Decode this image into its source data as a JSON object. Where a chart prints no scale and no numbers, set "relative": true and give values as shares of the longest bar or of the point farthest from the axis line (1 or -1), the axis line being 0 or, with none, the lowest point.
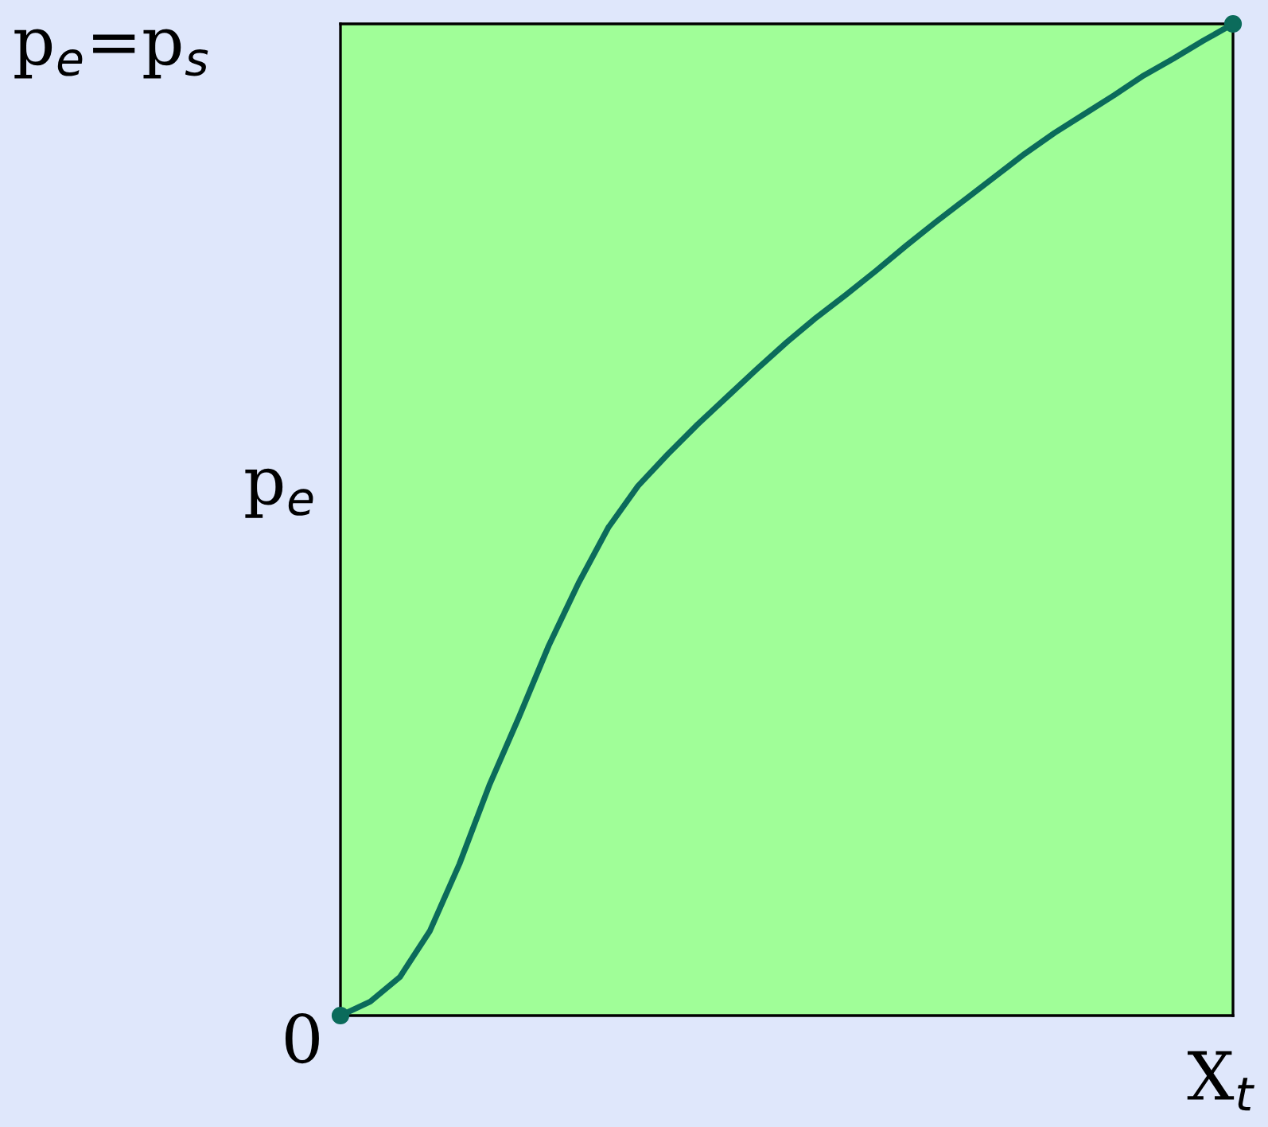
{
  "chart_data": {
    "type": "line",
    "categories": [
      null,
      null,
      null,
      null,
      null,
      null,
      null,
      null,
      null,
      null,
      null,
      null,
      null,
      null,
      null,
      null,
      null,
      null,
      null,
      null,
      null,
      null,
      null,
      null,
      null,
      null,
      null,
      null,
      null,
      null,
      null
    ],
    "relative": true,
    "annotations": [
      "p$_{e}$=p$_{s}$",
      "p$_{e}$",
      "0",
      "X$_{t}$"
    ],
    "grid": false,
    "legend": false,
    "series": [
      {
        "color": "#0b6b5b",
        "line_style": "solid",
        "values": [
          0,
          0.014,
          0.039,
          0.085,
          0.153,
          0.232,
          0.301,
          0.373,
          0.436,
          0.492,
          0.534,
          0.566,
          0.596,
          0.624,
          0.652,
          0.679,
          0.704,
          0.727,
          0.751,
          0.776,
          0.8,
          0.823,
          0.846,
          0.869,
          0.89,
          0.909,
          0.928,
          0.948,
          0.965,
          0.983,
          1
        ]
      }
    ]
  }
}
